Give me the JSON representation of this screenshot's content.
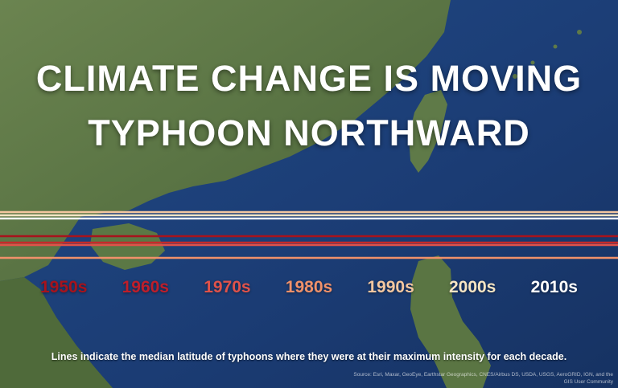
{
  "title_lines": [
    "CLIMATE CHANGE IS MOVING",
    "TYPHOON NORTHWARD"
  ],
  "decades": [
    {
      "label": "1950s",
      "color": "#a8131c"
    },
    {
      "label": "1960s",
      "color": "#bf1e2a"
    },
    {
      "label": "1970s",
      "color": "#e0524a"
    },
    {
      "label": "1980s",
      "color": "#f0916a"
    },
    {
      "label": "1990s",
      "color": "#f4c7a0"
    },
    {
      "label": "2000s",
      "color": "#f6e5c4"
    },
    {
      "label": "2010s",
      "color": "#ffffff"
    }
  ],
  "caption": "Lines indicate the median latitude of typhoons where they were at their maximum intensity for each decade.",
  "attribution": "Source: Esri, Maxar, GeoEye, Earthstar Geographics, CNES/Airbus DS, USDA, USGS, AeroGRID, IGN, and the GIS User Community",
  "colors": {
    "ocean": "#1d3f78",
    "land": "#5d7a45"
  }
}
